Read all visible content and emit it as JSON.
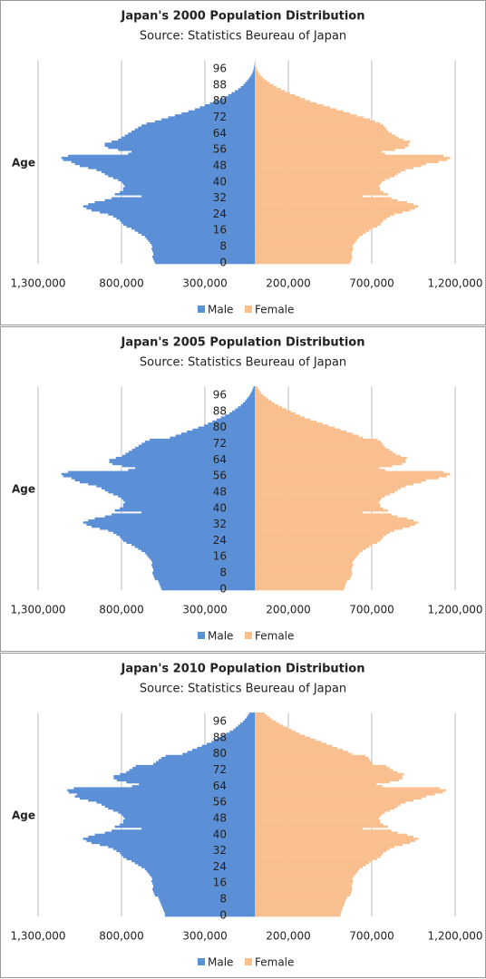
{
  "chart_data": [
    {
      "type": "pyramid",
      "title": "Japan's 2000 Population Distribution",
      "subtitle": "Source: Statistics Beureau of Japan",
      "y_label": "Age",
      "categories": [
        0,
        null,
        null,
        null,
        null,
        null,
        null,
        null,
        8,
        null,
        null,
        null,
        null,
        null,
        null,
        null,
        16,
        null,
        null,
        null,
        null,
        null,
        null,
        null,
        24,
        null,
        null,
        null,
        null,
        null,
        null,
        null,
        32,
        null,
        null,
        null,
        null,
        null,
        null,
        null,
        40,
        null,
        null,
        null,
        null,
        null,
        null,
        null,
        48,
        null,
        null,
        null,
        null,
        null,
        null,
        null,
        56,
        null,
        null,
        null,
        null,
        null,
        null,
        null,
        64,
        null,
        null,
        null,
        null,
        null,
        null,
        null,
        72,
        null,
        null,
        null,
        null,
        null,
        null,
        null,
        80,
        null,
        null,
        null,
        null,
        null,
        null,
        null,
        88,
        null,
        null,
        null,
        null,
        null,
        null,
        null,
        96,
        null,
        null,
        null,
        null
      ],
      "xlim": [
        -1300000,
        1200000
      ],
      "xticks": [
        {
          "value": -1300000,
          "label": "1,300,000"
        },
        {
          "value": -800000,
          "label": "800,000"
        },
        {
          "value": -300000,
          "label": "300,000"
        },
        {
          "value": 200000,
          "label": "200,000"
        },
        {
          "value": 700000,
          "label": "700,000"
        },
        {
          "value": 1200000,
          "label": "1,200,000"
        }
      ],
      "grid": true,
      "series": [
        {
          "name": "Male",
          "color": "#5b8fd6",
          "values": [
            -600000,
            -605000,
            -610000,
            -615000,
            -610000,
            -610000,
            -615000,
            -620000,
            -615000,
            -620000,
            -630000,
            -640000,
            -650000,
            -660000,
            -680000,
            -700000,
            -720000,
            -740000,
            -770000,
            -790000,
            -800000,
            -810000,
            -830000,
            -850000,
            -880000,
            -930000,
            -980000,
            -1010000,
            -1030000,
            -1000000,
            -960000,
            -900000,
            -860000,
            -680000,
            -840000,
            -810000,
            -790000,
            -790000,
            -780000,
            -790000,
            -800000,
            -820000,
            -850000,
            -880000,
            -900000,
            -920000,
            -950000,
            -1000000,
            -1050000,
            -1080000,
            -1100000,
            -1150000,
            -1160000,
            -1120000,
            -760000,
            -740000,
            -820000,
            -880000,
            -900000,
            -900000,
            -860000,
            -820000,
            -800000,
            -780000,
            -760000,
            -740000,
            -720000,
            -700000,
            -680000,
            -650000,
            -600000,
            -560000,
            -520000,
            -480000,
            -440000,
            -400000,
            -360000,
            -330000,
            -300000,
            -270000,
            -240000,
            -210000,
            -180000,
            -160000,
            -140000,
            -120000,
            -100000,
            -85000,
            -70000,
            -60000,
            -48000,
            -38000,
            -30000,
            -22000,
            -16000,
            -11000,
            -8000,
            -5000,
            -3000,
            -2000,
            -1000
          ]
        },
        {
          "name": "Female",
          "color": "#f9bf8f",
          "values": [
            570000,
            575000,
            580000,
            584000,
            580000,
            580000,
            584000,
            589000,
            584000,
            589000,
            599000,
            608000,
            618000,
            627000,
            646000,
            665000,
            684000,
            703000,
            732000,
            751000,
            760000,
            770000,
            789000,
            808000,
            836000,
            884000,
            931000,
            960000,
            979000,
            950000,
            912000,
            855000,
            817000,
            646000,
            798000,
            770000,
            751000,
            751000,
            741000,
            751000,
            760000,
            779000,
            808000,
            836000,
            855000,
            874000,
            903000,
            950000,
            998000,
            1026000,
            1100000,
            1150000,
            1170000,
            1130000,
            780000,
            760000,
            840000,
            900000,
            920000,
            920000,
            930000,
            890000,
            860000,
            840000,
            820000,
            800000,
            790000,
            780000,
            770000,
            750000,
            720000,
            690000,
            650000,
            610000,
            570000,
            530000,
            490000,
            450000,
            410000,
            370000,
            330000,
            300000,
            270000,
            240000,
            210000,
            180000,
            155000,
            130000,
            110000,
            90000,
            72000,
            56000,
            43000,
            32000,
            23000,
            16000,
            11000,
            7000,
            4000,
            3000,
            2000
          ]
        }
      ]
    },
    {
      "type": "pyramid",
      "title": "Japan's 2005 Population Distribution",
      "subtitle": "Source: Statistics Beureau of Japan",
      "y_label": "Age",
      "categories": [
        0,
        null,
        null,
        null,
        null,
        null,
        null,
        null,
        8,
        null,
        null,
        null,
        null,
        null,
        null,
        null,
        16,
        null,
        null,
        null,
        null,
        null,
        null,
        null,
        24,
        null,
        null,
        null,
        null,
        null,
        null,
        null,
        32,
        null,
        null,
        null,
        null,
        null,
        null,
        null,
        40,
        null,
        null,
        null,
        null,
        null,
        null,
        null,
        48,
        null,
        null,
        null,
        null,
        null,
        null,
        null,
        56,
        null,
        null,
        null,
        null,
        null,
        null,
        null,
        64,
        null,
        null,
        null,
        null,
        null,
        null,
        null,
        72,
        null,
        null,
        null,
        null,
        null,
        null,
        null,
        80,
        null,
        null,
        null,
        null,
        null,
        null,
        null,
        88,
        null,
        null,
        null,
        null,
        null,
        null,
        null,
        96,
        null,
        null,
        null,
        null
      ],
      "xlim": [
        -1300000,
        1200000
      ],
      "xticks": [
        {
          "value": -1300000,
          "label": "1,300,000"
        },
        {
          "value": -800000,
          "label": "800,000"
        },
        {
          "value": -300000,
          "label": "300,000"
        },
        {
          "value": 200000,
          "label": "200,000"
        },
        {
          "value": 700000,
          "label": "700,000"
        },
        {
          "value": 1200000,
          "label": "1,200,000"
        }
      ],
      "grid": true,
      "series": [
        {
          "name": "Male",
          "color": "#5b8fd6",
          "values": [
            -560000,
            -565000,
            -570000,
            -575000,
            -580000,
            -600000,
            -605000,
            -610000,
            -615000,
            -610000,
            -610000,
            -615000,
            -620000,
            -615000,
            -620000,
            -630000,
            -640000,
            -650000,
            -660000,
            -680000,
            -700000,
            -720000,
            -740000,
            -770000,
            -790000,
            -800000,
            -810000,
            -830000,
            -850000,
            -880000,
            -930000,
            -980000,
            -1010000,
            -1030000,
            -1000000,
            -960000,
            -900000,
            -860000,
            -680000,
            -840000,
            -810000,
            -790000,
            -790000,
            -780000,
            -790000,
            -800000,
            -820000,
            -850000,
            -880000,
            -900000,
            -920000,
            -950000,
            -1000000,
            -1050000,
            -1080000,
            -1100000,
            -1150000,
            -1160000,
            -1120000,
            -760000,
            -718000,
            -795000,
            -854000,
            -873000,
            -873000,
            -834000,
            -795000,
            -776000,
            -757000,
            -737000,
            -718000,
            -698000,
            -679000,
            -660000,
            -631000,
            -510000,
            -476000,
            -442000,
            -408000,
            -374000,
            -340000,
            -306000,
            -281000,
            -255000,
            -230000,
            -204000,
            -179000,
            -153000,
            -136000,
            -119000,
            -102000,
            -85000,
            -72000,
            -60000,
            -51000,
            -41000,
            -32000,
            -26000,
            -19000,
            -14000,
            -9000
          ]
        },
        {
          "name": "Female",
          "color": "#f9bf8f",
          "values": [
            532000,
            537000,
            541000,
            546000,
            551000,
            570000,
            575000,
            580000,
            584000,
            580000,
            580000,
            584000,
            589000,
            584000,
            589000,
            599000,
            608000,
            618000,
            627000,
            646000,
            665000,
            684000,
            703000,
            732000,
            751000,
            760000,
            770000,
            789000,
            808000,
            836000,
            884000,
            931000,
            960000,
            979000,
            950000,
            912000,
            855000,
            817000,
            646000,
            798000,
            770000,
            751000,
            751000,
            741000,
            751000,
            760000,
            779000,
            808000,
            836000,
            855000,
            874000,
            903000,
            950000,
            998000,
            1026000,
            1100000,
            1150000,
            1170000,
            1130000,
            780000,
            745000,
            823000,
            882000,
            902000,
            902000,
            911000,
            872000,
            843000,
            823000,
            804000,
            784000,
            774000,
            764000,
            755000,
            735000,
            648000,
            621000,
            585000,
            549000,
            513000,
            477000,
            441000,
            405000,
            369000,
            333000,
            297000,
            270000,
            243000,
            216000,
            189000,
            162000,
            140000,
            117000,
            99000,
            81000,
            65000,
            50000,
            39000,
            29000,
            21000,
            14000
          ]
        }
      ]
    },
    {
      "type": "pyramid",
      "title": "Japan's 2010 Population Distribution",
      "subtitle": "Source: Statistics Beureau of Japan",
      "y_label": "Age",
      "categories": [
        0,
        null,
        null,
        null,
        null,
        null,
        null,
        null,
        8,
        null,
        null,
        null,
        null,
        null,
        null,
        null,
        16,
        null,
        null,
        null,
        null,
        null,
        null,
        null,
        24,
        null,
        null,
        null,
        null,
        null,
        null,
        null,
        32,
        null,
        null,
        null,
        null,
        null,
        null,
        null,
        40,
        null,
        null,
        null,
        null,
        null,
        null,
        null,
        48,
        null,
        null,
        null,
        null,
        null,
        null,
        null,
        56,
        null,
        null,
        null,
        null,
        null,
        null,
        null,
        64,
        null,
        null,
        null,
        null,
        null,
        null,
        null,
        72,
        null,
        null,
        null,
        null,
        null,
        null,
        null,
        80,
        null,
        null,
        null,
        null,
        null,
        null,
        null,
        88,
        null,
        null,
        null,
        null,
        null,
        null,
        null,
        96,
        null,
        null,
        null,
        null
      ],
      "xlim": [
        -1300000,
        1200000
      ],
      "xticks": [
        {
          "value": -1300000,
          "label": "1,300,000"
        },
        {
          "value": -800000,
          "label": "800,000"
        },
        {
          "value": -300000,
          "label": "300,000"
        },
        {
          "value": 200000,
          "label": "200,000"
        },
        {
          "value": 700000,
          "label": "700,000"
        },
        {
          "value": 1200000,
          "label": "1,200,000"
        }
      ],
      "grid": true,
      "series": [
        {
          "name": "Male",
          "color": "#5b8fd6",
          "values": [
            -540000,
            -540000,
            -545000,
            -550000,
            -555000,
            -560000,
            -565000,
            -570000,
            -575000,
            -580000,
            -600000,
            -605000,
            -610000,
            -615000,
            -610000,
            -610000,
            -615000,
            -620000,
            -615000,
            -620000,
            -630000,
            -640000,
            -650000,
            -660000,
            -680000,
            -700000,
            -720000,
            -740000,
            -770000,
            -790000,
            -800000,
            -810000,
            -830000,
            -850000,
            -880000,
            -930000,
            -980000,
            -1010000,
            -1030000,
            -1000000,
            -960000,
            -900000,
            -860000,
            -680000,
            -840000,
            -810000,
            -790000,
            -790000,
            -780000,
            -790000,
            -800000,
            -820000,
            -850000,
            -880000,
            -900000,
            -920000,
            -950000,
            -1000000,
            -1050000,
            -1080000,
            -1067000,
            -1116000,
            -1125000,
            -1086000,
            -737000,
            -696000,
            -771000,
            -828000,
            -847000,
            -847000,
            -809000,
            -771000,
            -753000,
            -734000,
            -715000,
            -610000,
            -593000,
            -577000,
            -561000,
            -536000,
            -434000,
            -405000,
            -376000,
            -347000,
            -318000,
            -289000,
            -260000,
            -239000,
            -217000,
            -196000,
            -173000,
            -152000,
            -130000,
            -116000,
            -101000,
            -87000,
            -72000,
            -61000,
            -51000,
            -43000,
            -35000
          ]
        },
        {
          "name": "Female",
          "color": "#f9bf8f",
          "values": [
            513000,
            513000,
            518000,
            523000,
            527000,
            532000,
            537000,
            541000,
            546000,
            551000,
            570000,
            575000,
            580000,
            584000,
            580000,
            580000,
            584000,
            589000,
            584000,
            589000,
            599000,
            608000,
            618000,
            627000,
            646000,
            665000,
            684000,
            703000,
            732000,
            751000,
            760000,
            770000,
            789000,
            808000,
            836000,
            884000,
            931000,
            960000,
            979000,
            950000,
            912000,
            855000,
            817000,
            646000,
            798000,
            770000,
            751000,
            751000,
            741000,
            751000,
            760000,
            779000,
            808000,
            836000,
            855000,
            874000,
            903000,
            950000,
            998000,
            1026000,
            1078000,
            1127000,
            1147000,
            1107000,
            764000,
            730000,
            807000,
            864000,
            884000,
            884000,
            893000,
            855000,
            826000,
            807000,
            788000,
            706000,
            697000,
            688000,
            680000,
            662000,
            583000,
            559000,
            527000,
            494000,
            462000,
            429000,
            397000,
            365000,
            332000,
            300000,
            267000,
            243000,
            219000,
            194000,
            170000,
            146000,
            126000,
            105000,
            89000,
            73000,
            59000
          ]
        }
      ]
    }
  ]
}
